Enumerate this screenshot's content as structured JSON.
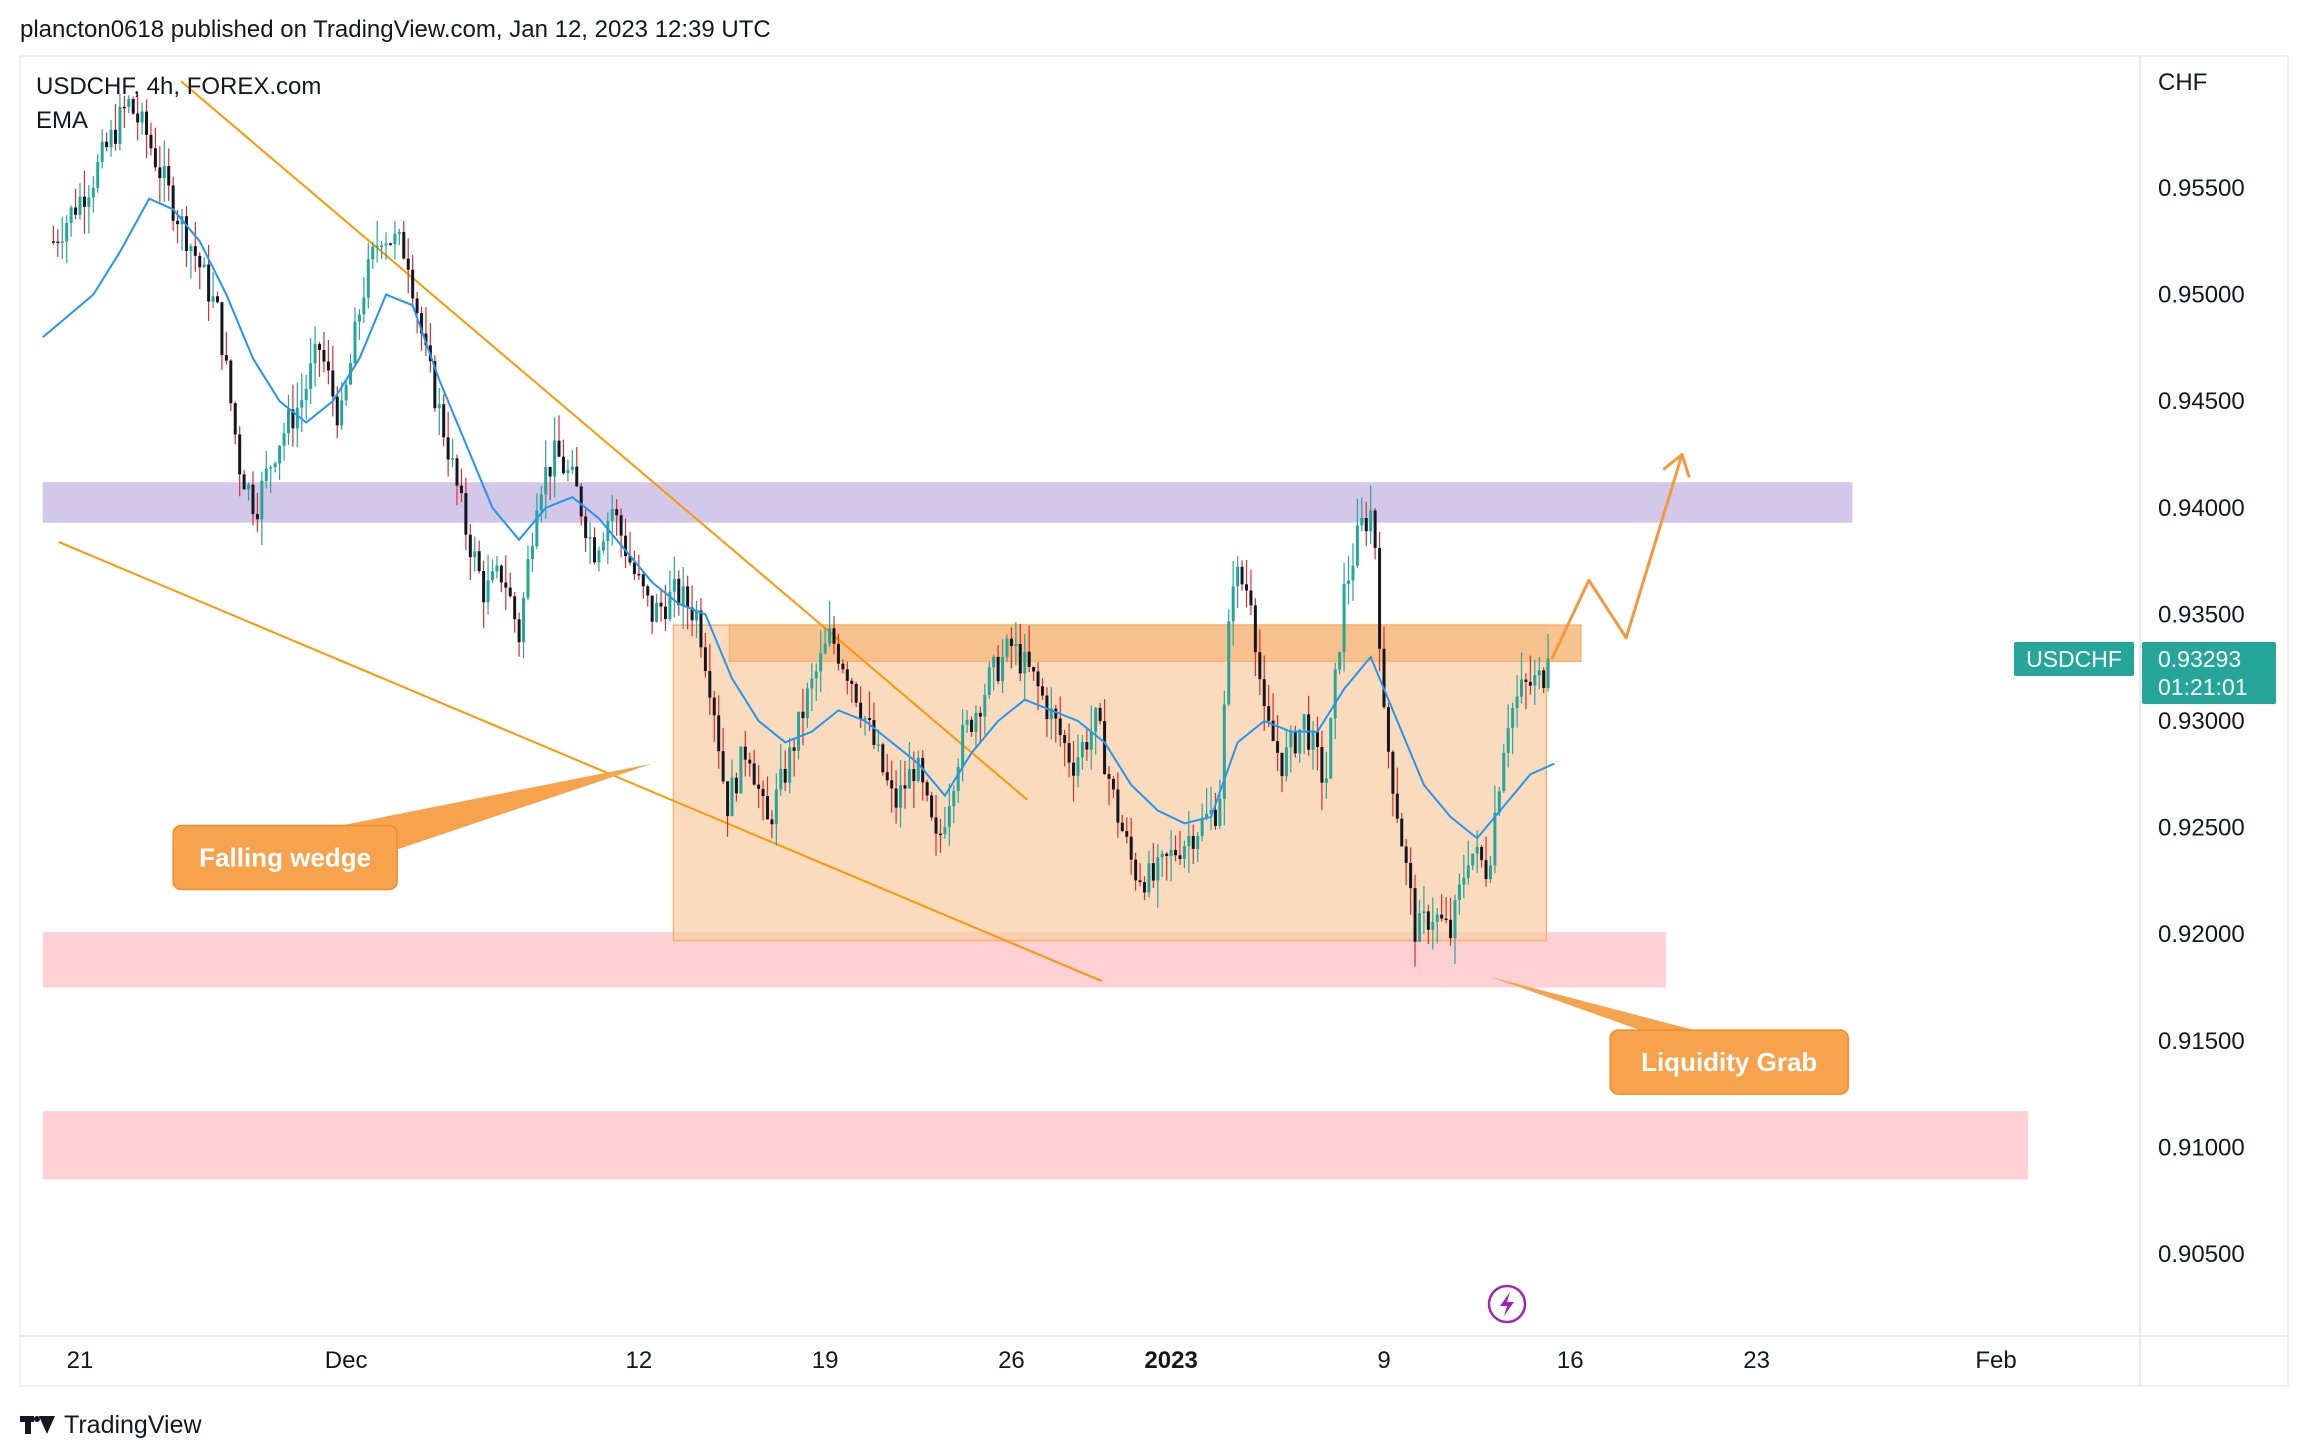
{
  "header": {
    "publish_line": "plancton0618 published on TradingView.com, Jan 12, 2023 12:39 UTC"
  },
  "footer": {
    "brand": "TradingView"
  },
  "chart_data": {
    "type": "candlestick",
    "symbol_line": "USDCHF, 4h, FOREX.com",
    "indicator_label": "EMA",
    "currency": "CHF",
    "ylim": [
      0.9015,
      0.9605
    ],
    "y_ticks": [
      {
        "value": 0.955,
        "label": "0.95500"
      },
      {
        "value": 0.95,
        "label": "0.95000"
      },
      {
        "value": 0.945,
        "label": "0.94500"
      },
      {
        "value": 0.94,
        "label": "0.94000"
      },
      {
        "value": 0.935,
        "label": "0.93500"
      },
      {
        "value": 0.93,
        "label": "0.93000"
      },
      {
        "value": 0.925,
        "label": "0.92500"
      },
      {
        "value": 0.92,
        "label": "0.92000"
      },
      {
        "value": 0.915,
        "label": "0.91500"
      },
      {
        "value": 0.91,
        "label": "0.91000"
      },
      {
        "value": 0.905,
        "label": "0.90500"
      }
    ],
    "x_range_days": [
      -1.4,
      73.2
    ],
    "x_ticks": [
      {
        "day": 0,
        "label": "21",
        "bold": false
      },
      {
        "day": 10,
        "label": "Dec",
        "bold": false
      },
      {
        "day": 21,
        "label": "12",
        "bold": false
      },
      {
        "day": 28,
        "label": "19",
        "bold": false
      },
      {
        "day": 35,
        "label": "26",
        "bold": false
      },
      {
        "day": 41,
        "label": "2023",
        "bold": true
      },
      {
        "day": 49,
        "label": "9",
        "bold": false
      },
      {
        "day": 56,
        "label": "16",
        "bold": false
      },
      {
        "day": 63,
        "label": "23",
        "bold": false
      },
      {
        "day": 72,
        "label": "Feb",
        "bold": false
      }
    ],
    "price_path": [
      [
        -1.0,
        0.9525
      ],
      [
        0.5,
        0.9555
      ],
      [
        1.8,
        0.959
      ],
      [
        2.5,
        0.9575
      ],
      [
        3.4,
        0.9545
      ],
      [
        4.3,
        0.952
      ],
      [
        5.2,
        0.949
      ],
      [
        6.0,
        0.942
      ],
      [
        6.6,
        0.94
      ],
      [
        7.4,
        0.943
      ],
      [
        8.3,
        0.945
      ],
      [
        9.0,
        0.9475
      ],
      [
        9.8,
        0.944
      ],
      [
        10.6,
        0.95
      ],
      [
        11.3,
        0.953
      ],
      [
        12.3,
        0.952
      ],
      [
        13.0,
        0.947
      ],
      [
        13.8,
        0.943
      ],
      [
        14.5,
        0.939
      ],
      [
        15.2,
        0.936
      ],
      [
        15.9,
        0.937
      ],
      [
        16.5,
        0.934
      ],
      [
        17.2,
        0.941
      ],
      [
        17.9,
        0.9425
      ],
      [
        18.6,
        0.941
      ],
      [
        19.3,
        0.938
      ],
      [
        20.0,
        0.94
      ],
      [
        20.8,
        0.937
      ],
      [
        21.5,
        0.935
      ],
      [
        22.4,
        0.936
      ],
      [
        23.2,
        0.935
      ],
      [
        23.8,
        0.931
      ],
      [
        24.3,
        0.926
      ],
      [
        25.1,
        0.929
      ],
      [
        25.8,
        0.925
      ],
      [
        26.6,
        0.928
      ],
      [
        27.3,
        0.931
      ],
      [
        28.2,
        0.934
      ],
      [
        29.0,
        0.932
      ],
      [
        29.8,
        0.929
      ],
      [
        30.6,
        0.926
      ],
      [
        31.4,
        0.928
      ],
      [
        32.2,
        0.924
      ],
      [
        33.1,
        0.929
      ],
      [
        34.2,
        0.932
      ],
      [
        35.0,
        0.9335
      ],
      [
        35.8,
        0.932
      ],
      [
        36.6,
        0.93
      ],
      [
        37.3,
        0.928
      ],
      [
        38.2,
        0.93
      ],
      [
        38.9,
        0.926
      ],
      [
        39.6,
        0.923
      ],
      [
        40.3,
        0.9225
      ],
      [
        41.2,
        0.924
      ],
      [
        42.0,
        0.925
      ],
      [
        42.8,
        0.926
      ],
      [
        43.3,
        0.937
      ],
      [
        44.0,
        0.936
      ],
      [
        44.5,
        0.93
      ],
      [
        45.2,
        0.928
      ],
      [
        46.0,
        0.93
      ],
      [
        46.8,
        0.927
      ],
      [
        47.5,
        0.936
      ],
      [
        48.1,
        0.939
      ],
      [
        48.6,
        0.94
      ],
      [
        49.0,
        0.93
      ],
      [
        49.6,
        0.925
      ],
      [
        50.2,
        0.92
      ],
      [
        50.8,
        0.921
      ],
      [
        51.5,
        0.92
      ],
      [
        52.2,
        0.924
      ],
      [
        52.9,
        0.923
      ],
      [
        53.6,
        0.93
      ],
      [
        54.2,
        0.9315
      ],
      [
        54.9,
        0.932
      ],
      [
        55.3,
        0.9329
      ]
    ],
    "ema_path": [
      [
        -1.4,
        0.948
      ],
      [
        0.5,
        0.95
      ],
      [
        1.5,
        0.952
      ],
      [
        2.6,
        0.9545
      ],
      [
        3.5,
        0.954
      ],
      [
        4.5,
        0.9525
      ],
      [
        5.5,
        0.95
      ],
      [
        6.5,
        0.947
      ],
      [
        7.5,
        0.945
      ],
      [
        8.5,
        0.944
      ],
      [
        9.5,
        0.945
      ],
      [
        10.5,
        0.947
      ],
      [
        11.5,
        0.95
      ],
      [
        12.5,
        0.9495
      ],
      [
        13.5,
        0.946
      ],
      [
        14.5,
        0.943
      ],
      [
        15.5,
        0.94
      ],
      [
        16.5,
        0.9385
      ],
      [
        17.5,
        0.94
      ],
      [
        18.5,
        0.9405
      ],
      [
        19.5,
        0.9395
      ],
      [
        20.5,
        0.938
      ],
      [
        21.5,
        0.9365
      ],
      [
        22.5,
        0.9355
      ],
      [
        23.5,
        0.935
      ],
      [
        24.5,
        0.932
      ],
      [
        25.5,
        0.93
      ],
      [
        26.5,
        0.929
      ],
      [
        27.5,
        0.9295
      ],
      [
        28.5,
        0.9305
      ],
      [
        29.5,
        0.93
      ],
      [
        30.5,
        0.929
      ],
      [
        31.5,
        0.928
      ],
      [
        32.5,
        0.9265
      ],
      [
        33.5,
        0.9285
      ],
      [
        34.5,
        0.93
      ],
      [
        35.5,
        0.931
      ],
      [
        36.5,
        0.9305
      ],
      [
        37.5,
        0.93
      ],
      [
        38.5,
        0.929
      ],
      [
        39.5,
        0.927
      ],
      [
        40.5,
        0.9258
      ],
      [
        41.5,
        0.9252
      ],
      [
        42.5,
        0.9255
      ],
      [
        43.5,
        0.929
      ],
      [
        44.5,
        0.93
      ],
      [
        45.5,
        0.9295
      ],
      [
        46.5,
        0.9295
      ],
      [
        47.5,
        0.9315
      ],
      [
        48.5,
        0.933
      ],
      [
        49.5,
        0.93
      ],
      [
        50.5,
        0.927
      ],
      [
        51.5,
        0.9255
      ],
      [
        52.5,
        0.9245
      ],
      [
        53.5,
        0.926
      ],
      [
        54.5,
        0.9275
      ],
      [
        55.4,
        0.928
      ]
    ],
    "zones": [
      {
        "name": "resistance-zone",
        "x0": -1.4,
        "x1": 66.6,
        "y0": 0.9393,
        "y1": 0.9412,
        "fill": "#d1c4e9"
      },
      {
        "name": "support-zone",
        "x0": -1.4,
        "x1": 59.6,
        "y0": 0.9175,
        "y1": 0.9201,
        "fill": "#ffcdd2"
      },
      {
        "name": "lower-support-zone",
        "x0": -1.4,
        "x1": 73.2,
        "y0": 0.9085,
        "y1": 0.9117,
        "fill": "#ffcdd2"
      },
      {
        "name": "range-box",
        "x0": 22.3,
        "x1": 55.1,
        "y0": 0.9197,
        "y1": 0.9345,
        "fill": "#f9cfa8"
      },
      {
        "name": "breakout-level-zone",
        "x0": 24.4,
        "x1": 56.4,
        "y0": 0.9328,
        "y1": 0.9345,
        "fill": "#f7c08a"
      }
    ],
    "trendlines": [
      {
        "name": "wedge-upper-line",
        "points": [
          [
            3.8,
            0.96
          ],
          [
            35.6,
            0.9263
          ]
        ]
      },
      {
        "name": "wedge-lower-line",
        "points": [
          [
            -0.8,
            0.9384
          ],
          [
            38.4,
            0.9178
          ]
        ]
      }
    ],
    "projection_path": [
      [
        55.3,
        0.9329
      ],
      [
        56.7,
        0.9366
      ],
      [
        58.1,
        0.9339
      ],
      [
        60.2,
        0.9425
      ]
    ],
    "annotations": [
      {
        "name": "falling-wedge-label",
        "text": "Falling wedge",
        "x": 3.5,
        "y": 0.9236,
        "pointer": [
          21.5,
          0.928
        ]
      },
      {
        "name": "liquidity-grab-label",
        "text": "Liquidity Grab",
        "x": 57.5,
        "y": 0.914,
        "pointer": [
          53.0,
          0.918
        ]
      }
    ],
    "last_price": {
      "value": 0.93293,
      "label": "USDCHF",
      "price_text": "0.93293",
      "countdown": "01:21:01",
      "color": "#26a69a"
    },
    "colors": {
      "up": "#26a69a",
      "down": "#131722",
      "wick": "#555555",
      "ema": "#2196f3",
      "trend": "#ff9800",
      "label_bg": "#f7a24d",
      "label_text": "#ffffff",
      "grid_border": "#e0e3eb",
      "axis_text": "#131722"
    }
  }
}
